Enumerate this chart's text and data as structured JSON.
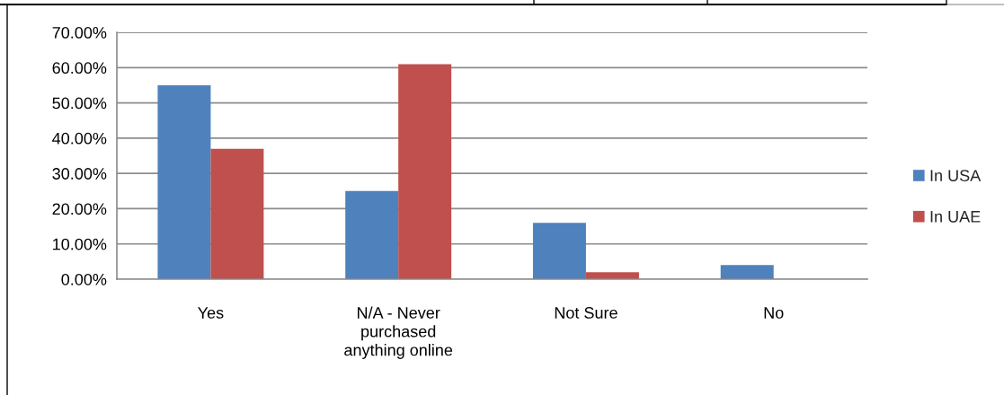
{
  "chart_data": {
    "type": "bar",
    "categories": [
      "Yes",
      "N/A - Never\npurchased\nanything online",
      "Not Sure",
      "No"
    ],
    "series": [
      {
        "name": "In USA",
        "color": "#4f81bd",
        "values": [
          55,
          25,
          16,
          4
        ]
      },
      {
        "name": "In UAE",
        "color": "#c0504d",
        "values": [
          37,
          61,
          2,
          0
        ]
      }
    ],
    "ylim": [
      0,
      70
    ],
    "yticks": [
      {
        "value": 0,
        "label": "0.00%"
      },
      {
        "value": 10,
        "label": "10.00%"
      },
      {
        "value": 20,
        "label": "20.00%"
      },
      {
        "value": 30,
        "label": "30.00%"
      },
      {
        "value": 40,
        "label": "40.00%"
      },
      {
        "value": 50,
        "label": "50.00%"
      },
      {
        "value": 60,
        "label": "60.00%"
      },
      {
        "value": 70,
        "label": "70.00%"
      }
    ],
    "grid": "y",
    "legend": "right"
  }
}
